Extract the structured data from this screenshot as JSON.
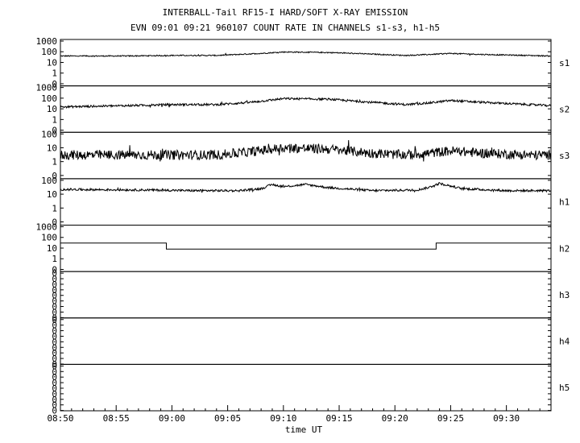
{
  "chart_data": {
    "type": "line",
    "title": "INTERBALL-Tail RF15-I HARD/SOFT X-RAY EMISSION",
    "subtitle": "EVN 09:01 09:21 960107  COUNT RATE IN CHANNELS s1-s3, h1-h5",
    "xlabel": "time UT",
    "x_range": [
      "08:50",
      "09:34"
    ],
    "x_ticks": [
      "08:50",
      "08:55",
      "09:00",
      "09:05",
      "09:10",
      "09:15",
      "09:20",
      "09:25",
      "09:30"
    ],
    "y_scale": "log",
    "panels": [
      {
        "name": "s1",
        "y_ticks": [
          "1000",
          "100",
          "10",
          "1",
          "0"
        ],
        "series": {
          "x": [
            "08:50",
            "08:56",
            "09:00",
            "09:04",
            "09:08",
            "09:10",
            "09:14",
            "09:18",
            "09:21",
            "09:23",
            "09:25",
            "09:28",
            "09:32",
            "09:34"
          ],
          "y": [
            40,
            40,
            45,
            45,
            70,
            95,
            85,
            60,
            45,
            55,
            70,
            55,
            45,
            40
          ],
          "noise": 0.05
        }
      },
      {
        "name": "s2",
        "y_ticks": [
          "1000",
          "100",
          "10",
          "1",
          "0"
        ],
        "series": {
          "x": [
            "08:50",
            "08:56",
            "09:00",
            "09:04",
            "09:07",
            "09:10",
            "09:14",
            "09:18",
            "09:21",
            "09:23",
            "09:25",
            "09:28",
            "09:32",
            "09:34"
          ],
          "y": [
            15,
            20,
            25,
            25,
            40,
            90,
            80,
            40,
            25,
            35,
            60,
            40,
            25,
            20
          ],
          "noise": 0.1
        }
      },
      {
        "name": "s3",
        "y_ticks": [
          "100",
          "10",
          "1",
          "0"
        ],
        "series": {
          "x": [
            "08:50",
            "08:56",
            "09:00",
            "09:04",
            "09:07",
            "09:10",
            "09:14",
            "09:18",
            "09:21",
            "09:23",
            "09:25",
            "09:28",
            "09:32",
            "09:34"
          ],
          "y": [
            3,
            3,
            3,
            3,
            5,
            10,
            8,
            4,
            3,
            4,
            6,
            4,
            3,
            3
          ],
          "noise": 0.35
        }
      },
      {
        "name": "h1",
        "y_ticks": [
          "100",
          "10",
          "1",
          "0"
        ],
        "series": {
          "x": [
            "08:50",
            "08:58",
            "09:02",
            "09:06",
            "09:08",
            "09:09",
            "09:10",
            "09:12",
            "09:14",
            "09:18",
            "09:22",
            "09:23",
            "09:24",
            "09:26",
            "09:30",
            "09:34"
          ],
          "y": [
            22,
            20,
            18,
            18,
            25,
            50,
            35,
            50,
            30,
            18,
            20,
            30,
            60,
            25,
            18,
            18
          ],
          "noise": 0.08
        }
      },
      {
        "name": "h2",
        "y_ticks": [
          "1000",
          "100",
          "10",
          "1",
          "0"
        ],
        "series": {
          "x": [
            "08:50",
            "08:59.5",
            "08:59.5",
            "09:00",
            "09:00",
            "09:23.7",
            "09:23.7",
            "09:34"
          ],
          "y": [
            30,
            30,
            8,
            8,
            8,
            8,
            30,
            30
          ],
          "noise": 0
        }
      },
      {
        "name": "h3",
        "y_ticks": [
          "0",
          "0",
          "0",
          "0",
          "0",
          "0",
          "0",
          "0",
          "0"
        ],
        "series": {
          "x": [],
          "y": [],
          "noise": 0
        }
      },
      {
        "name": "h4",
        "y_ticks": [
          "0",
          "0",
          "0",
          "0",
          "0",
          "0",
          "0",
          "0",
          "0"
        ],
        "series": {
          "x": [],
          "y": [],
          "noise": 0
        }
      },
      {
        "name": "h5",
        "y_ticks": [
          "0",
          "0",
          "0",
          "0",
          "0",
          "0",
          "0",
          "0",
          "0"
        ],
        "series": {
          "x": [],
          "y": [],
          "noise": 0
        }
      }
    ],
    "grid": false,
    "legend": "none"
  }
}
